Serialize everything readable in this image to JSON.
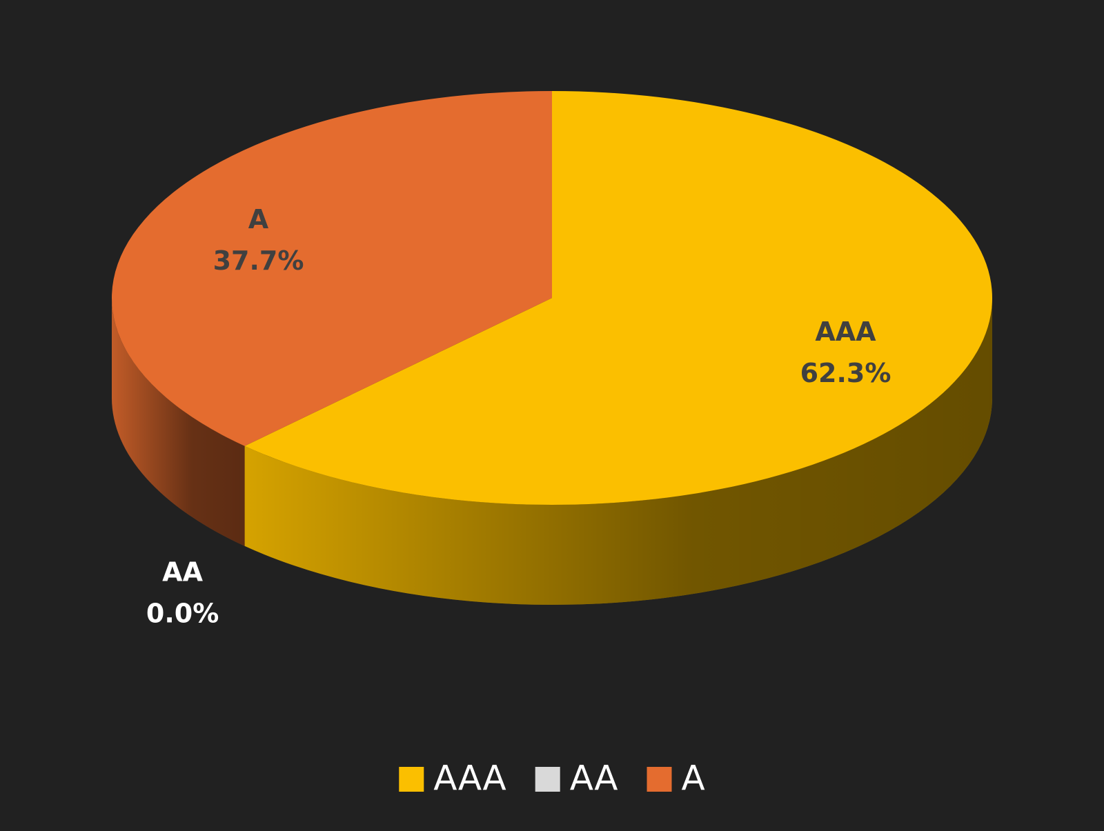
{
  "chart_data": {
    "type": "pie",
    "categories": [
      "AAA",
      "AA",
      "A"
    ],
    "values": [
      62.3,
      0.0,
      37.7
    ],
    "value_labels": [
      "62.3%",
      "0.0%",
      "37.7%"
    ],
    "colors": [
      "#fbbf00",
      "#d9d9d9",
      "#e46c2f"
    ],
    "legend": "bottom"
  }
}
